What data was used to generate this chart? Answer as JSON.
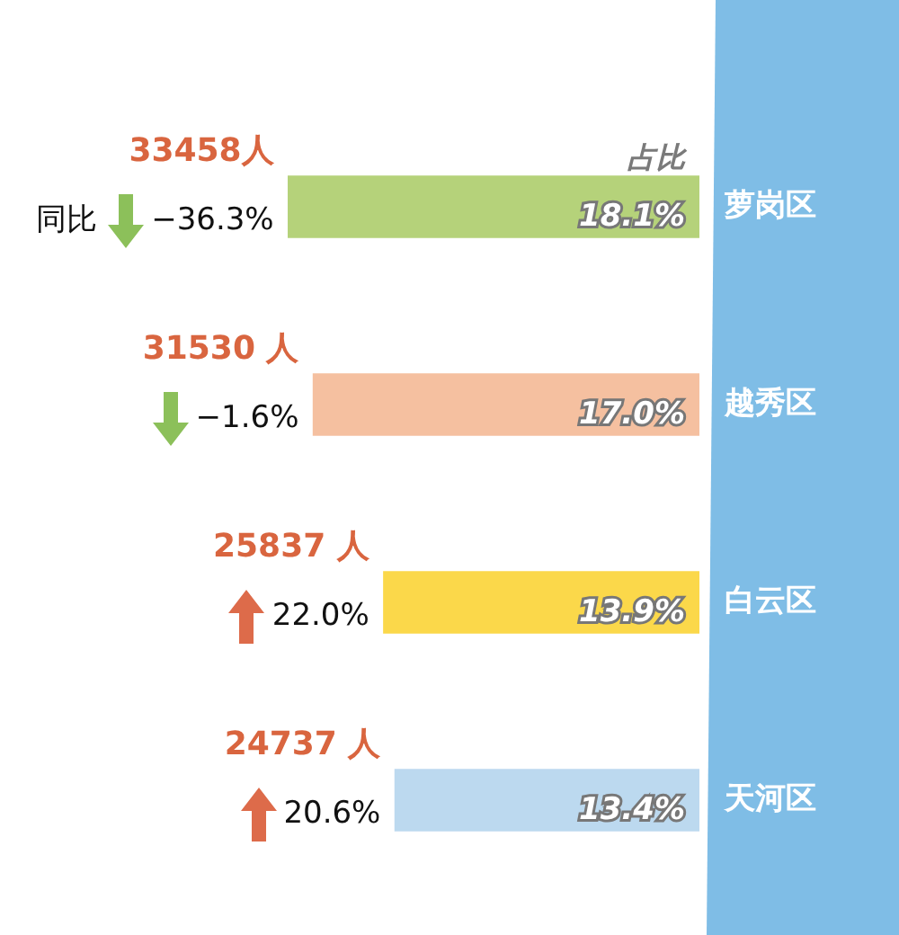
{
  "chart_data": {
    "type": "bar",
    "orientation": "horizontal",
    "categories": [
      "萝岗区",
      "越秀区",
      "白云区",
      "天河区"
    ],
    "values": [
      18.1,
      17.0,
      13.9,
      13.4
    ],
    "colors": [
      "#b5d27a",
      "#f5c0a0",
      "#fbd84a",
      "#bcd9ef"
    ],
    "value_labels": [
      "18.1%",
      "17.0%",
      "13.9%",
      "13.4%"
    ],
    "tick_labels": "y",
    "legend": false,
    "annotations": [
      "33458人",
      "−36.3%",
      "31530 人",
      "−1.6%",
      "25837 人",
      "22.0%",
      "24737 人",
      "20.6%",
      "同比",
      "占比"
    ]
  }
}
